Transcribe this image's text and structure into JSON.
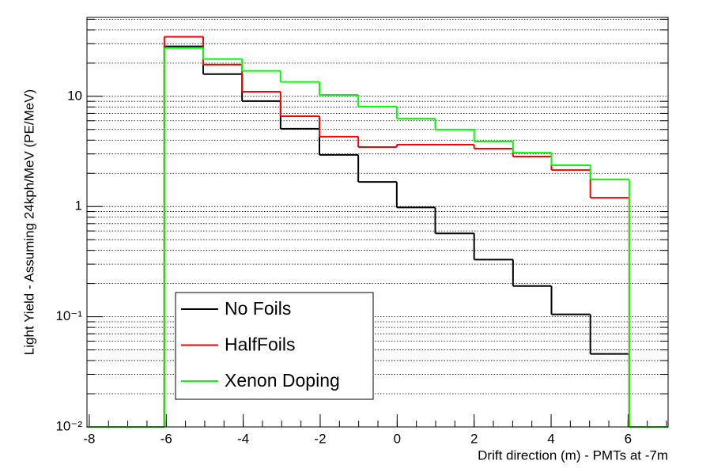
{
  "chart_data": {
    "type": "histogram",
    "x_label": "Drift direction (m) - PMTs at -7m",
    "y_label": "Light Yield - Assuming 24kph/MeV (PE/MeV)",
    "bins": [
      -8.06,
      -7.05,
      -6.05,
      -5.04,
      -4.03,
      -3.03,
      -2.02,
      -1.01,
      -0.01,
      0.99,
      2.0,
      3.01,
      4.01,
      5.02,
      6.03,
      7.04
    ],
    "series": [
      {
        "name": "No Foils",
        "color": "#000000",
        "values": [
          null,
          null,
          28.4,
          15.9,
          9.05,
          5.07,
          2.94,
          1.67,
          0.98,
          0.57,
          0.33,
          0.19,
          0.105,
          0.046,
          null
        ]
      },
      {
        "name": "HalfFoils",
        "color": "#ff0000",
        "values": [
          null,
          null,
          34.7,
          19.4,
          11.0,
          6.6,
          4.3,
          3.46,
          3.64,
          3.64,
          3.35,
          2.84,
          2.14,
          1.2,
          null
        ]
      },
      {
        "name": "Xenon Doping",
        "color": "#00ff00",
        "values": [
          null,
          null,
          27.5,
          21.8,
          17.0,
          13.5,
          10.3,
          8.06,
          6.29,
          4.99,
          3.89,
          3.08,
          2.37,
          1.76,
          null
        ]
      }
    ],
    "xlim": [
      -8.06,
      7.04
    ],
    "xticks": [
      -8,
      -6,
      -4,
      -2,
      0,
      2,
      4,
      6
    ],
    "ylim": [
      0.01,
      52
    ],
    "log_y": true,
    "yticks": [
      {
        "value": 0.01,
        "label": "10⁻²"
      },
      {
        "value": 0.1,
        "label": "10⁻¹"
      },
      1,
      10
    ],
    "grid": true
  }
}
